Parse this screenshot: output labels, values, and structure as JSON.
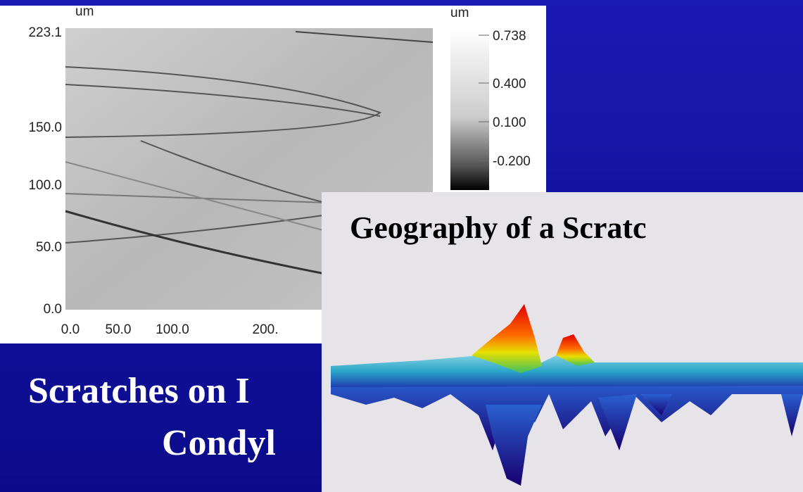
{
  "afm_image": {
    "y_unit": "um",
    "y_ticks": [
      "223.1",
      "150.0",
      "100.0",
      "50.0",
      "0.0"
    ],
    "x_ticks": [
      "0.0",
      "50.0",
      "100.0",
      "200."
    ],
    "colorbar_unit": "um",
    "colorbar_ticks": [
      "0.738",
      "0.400",
      "0.100",
      "-0.200"
    ]
  },
  "inset": {
    "title": "Geography of a Scratc"
  },
  "caption": {
    "lines": [
      "Scratches on I",
      "Condyl"
    ]
  }
}
